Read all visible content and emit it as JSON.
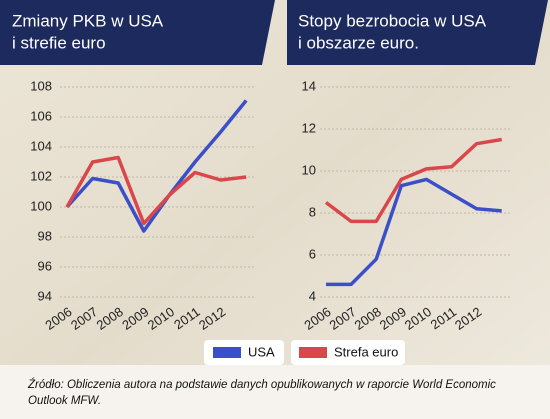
{
  "chart_data": [
    {
      "type": "line",
      "title": [
        "Zmiany PKB w USA",
        "i strefie euro"
      ],
      "categories": [
        "2006",
        "2007",
        "2008",
        "2009",
        "2010",
        "2011",
        "2012",
        null
      ],
      "series": [
        {
          "name": "USA",
          "color": "#3b4fc8",
          "values": [
            100,
            101.9,
            101.6,
            98.4,
            100.8,
            103,
            105,
            107.1
          ]
        },
        {
          "name": "Strefa euro",
          "color": "#d9474a",
          "values": [
            100,
            103,
            103.3,
            98.9,
            100.8,
            102.3,
            101.8,
            102
          ]
        }
      ],
      "ylim": [
        94,
        108
      ],
      "yticks": [
        94,
        96,
        98,
        100,
        102,
        104,
        106,
        108
      ],
      "grid": true
    },
    {
      "type": "line",
      "title": [
        "Stopy bezrobocia w USA",
        "i obszarze euro."
      ],
      "categories": [
        "2006",
        "2007",
        "2008",
        "2009",
        "2010",
        "2011",
        "2012",
        null
      ],
      "series": [
        {
          "name": "USA",
          "color": "#3b4fc8",
          "values": [
            4.6,
            4.6,
            5.8,
            9.3,
            9.6,
            8.9,
            8.2,
            8.1
          ]
        },
        {
          "name": "Strefa euro",
          "color": "#d9474a",
          "values": [
            8.5,
            7.6,
            7.6,
            9.6,
            10.1,
            10.2,
            11.3,
            11.5
          ]
        }
      ],
      "ylim": [
        4,
        14
      ],
      "yticks": [
        4,
        6,
        8,
        10,
        12,
        14
      ],
      "grid": true
    }
  ],
  "source": "Źródło: Obliczenia autora na podstawie danych opublikowanych w raporcie World Economic Outlook MFW."
}
